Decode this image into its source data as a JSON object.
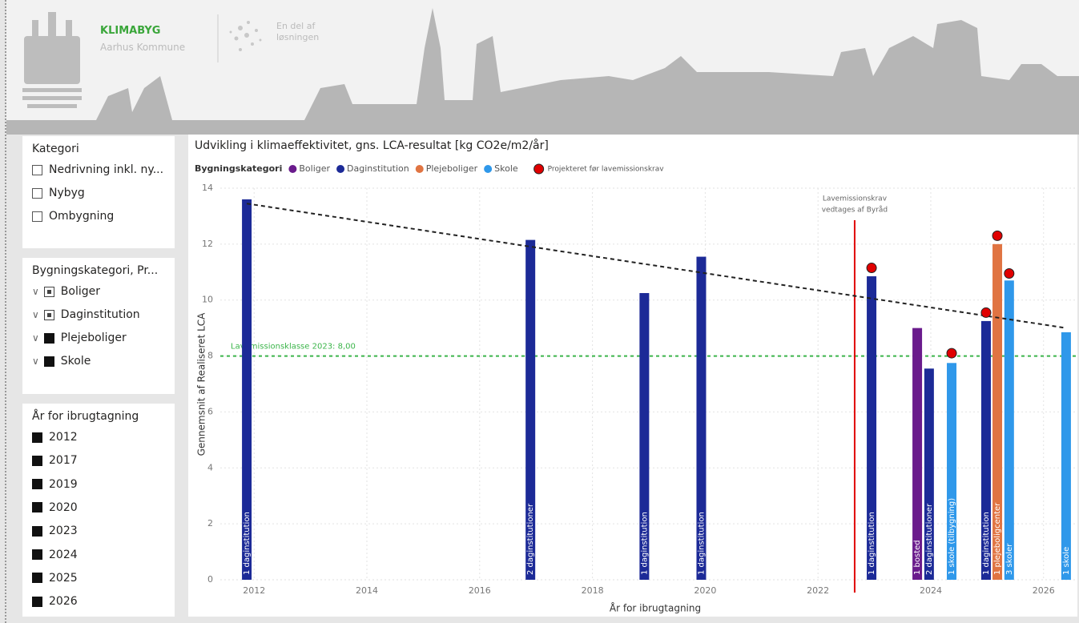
{
  "header": {
    "brand": "KLIMABYG",
    "organisation": "Aarhus Kommune",
    "tagline_lines": [
      "En del af",
      "løsningen"
    ]
  },
  "slicers": [
    {
      "title": "Kategori",
      "style": "checkbox",
      "items": [
        "Nedrivning inkl. ny...",
        "Nybyg",
        "Ombygning"
      ]
    },
    {
      "title": "Bygningskategori, Pr...",
      "style": "tree",
      "items": [
        "Boliger",
        "Daginstitution",
        "Plejeboliger",
        "Skole"
      ]
    },
    {
      "title": "År for ibrugtagning",
      "style": "filled",
      "items": [
        "2012",
        "2017",
        "2019",
        "2020",
        "2023",
        "2024",
        "2025",
        "2026"
      ]
    }
  ],
  "chart_data": {
    "type": "bar",
    "title": "Udvikling i klimaeffektivitet, gns. LCA-resultat [kg CO2e/m2/år]",
    "legend_title": "Bygningskategori",
    "x_label": "År for ibrugtagning",
    "y_label": "Gennemsnit af Realiseret LCA",
    "series": [
      {
        "name": "Boliger",
        "color": "#6a1b8c",
        "x": [
          2023.76
        ],
        "values": [
          9.0
        ],
        "bar_labels": [
          "1 bosted"
        ]
      },
      {
        "name": "Daginstitution",
        "color": "#1c2a97",
        "x": [
          2011.87,
          2016.9,
          2018.92,
          2019.93,
          2022.95,
          2023.97,
          2024.98
        ],
        "values": [
          13.6,
          12.15,
          10.25,
          11.55,
          10.85,
          7.55,
          9.25
        ],
        "bar_labels": [
          "1 daginstitution",
          "2 daginstitutioner",
          "1 daginstitution",
          "1 daginstitution",
          "1 daginstitution",
          "2 daginstitutioner",
          "1 daginstitution"
        ]
      },
      {
        "name": "Plejeboliger",
        "color": "#e07442",
        "x": [
          2025.18
        ],
        "values": [
          12.0
        ],
        "bar_labels": [
          "1 plejeboligcenter"
        ]
      },
      {
        "name": "Skole",
        "color": "#2f98ea",
        "x": [
          2024.37,
          2025.39,
          2026.4
        ],
        "values": [
          7.75,
          10.7,
          8.85
        ],
        "bar_labels": [
          "1 skole (tilbygning)",
          "3 skoler",
          "1 skole"
        ]
      }
    ],
    "markers": {
      "name": "Projekteret før lavemissionskrav",
      "color": "#e00000",
      "x": [
        2022.95,
        2024.37,
        2024.98,
        2025.18,
        2025.39
      ],
      "values": [
        11.15,
        8.1,
        9.55,
        12.3,
        10.95
      ]
    },
    "trend_line": {
      "color": "#222222",
      "x": [
        2011.87,
        2026.4
      ],
      "values": [
        13.45,
        9.0
      ]
    },
    "reference_line": {
      "value": 8,
      "label": "Lavemissionsklasse 2023: 8,00",
      "color": "#3bb54a"
    },
    "vertical_line": {
      "x": 2022.65,
      "color": "#e00000",
      "label_lines": [
        "Lavemissionskrav",
        "vedtages af Byråd"
      ]
    },
    "xlim": [
      2011.4,
      2026.6
    ],
    "xticks": [
      2012,
      2014,
      2016,
      2018,
      2020,
      2022,
      2024,
      2026
    ],
    "ylim": [
      0,
      14
    ],
    "yticks": [
      0,
      2,
      4,
      6,
      8,
      10,
      12,
      14
    ],
    "grid": true
  }
}
